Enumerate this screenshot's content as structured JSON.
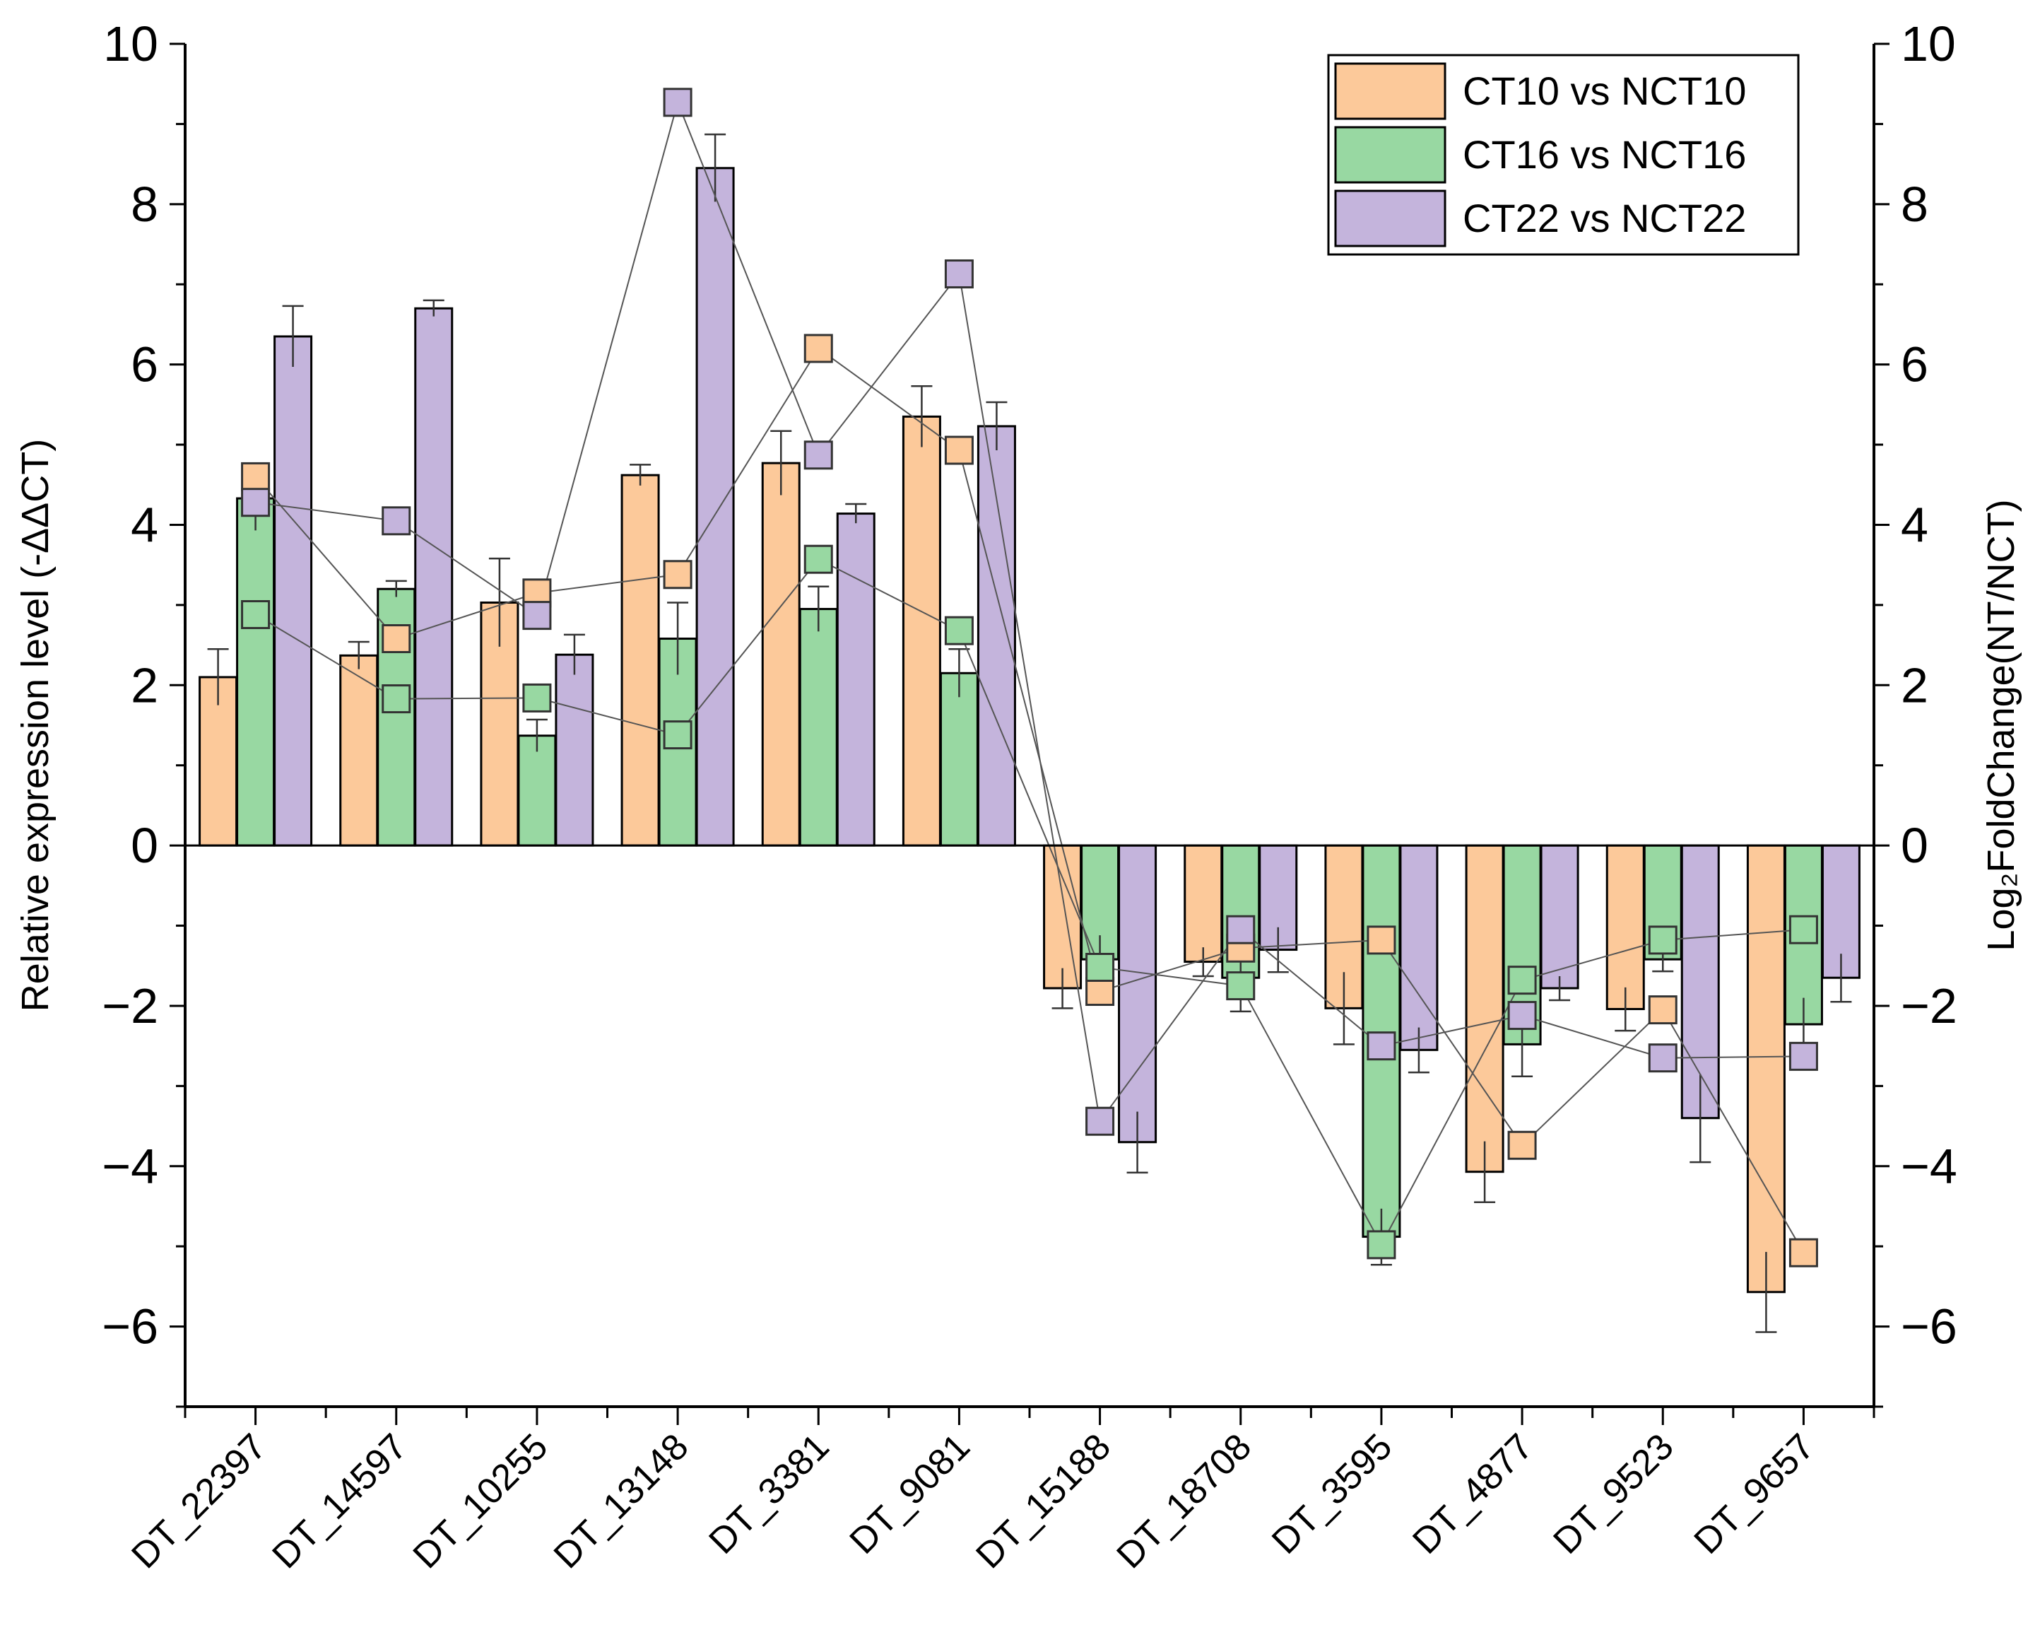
{
  "chart_data": {
    "type": "bar",
    "title": "",
    "xlabel": "",
    "ylabel": "Relative expression level (-ΔΔCT)",
    "ylabel_right": "Log₂FoldChange(NT/NCT)",
    "ylim": [
      -7,
      10
    ],
    "ylim_right": [
      -7,
      10
    ],
    "yticks": [
      -6,
      -4,
      -2,
      0,
      2,
      4,
      6,
      8,
      10
    ],
    "ytick_labels": [
      "−6",
      "−4",
      "−2",
      "0",
      "2",
      "4",
      "6",
      "8",
      "10"
    ],
    "grid": false,
    "legend_position": "top-right",
    "categories": [
      "DT_22397",
      "DT_14597",
      "DT_10255",
      "DT_13148",
      "DT_3381",
      "DT_9081",
      "DT_15188",
      "DT_18708",
      "DT_3595",
      "DT_4877",
      "DT_9523",
      "DT_9657"
    ],
    "series": [
      {
        "name": "CT10 vs NCT10",
        "color": "#FCC99A",
        "values": [
          2.1,
          2.37,
          3.03,
          4.62,
          4.77,
          5.35,
          -1.78,
          -1.45,
          -2.03,
          -4.07,
          -2.04,
          -5.57
        ],
        "errors": [
          0.35,
          0.17,
          0.55,
          0.13,
          0.4,
          0.38,
          0.25,
          0.18,
          0.45,
          0.38,
          0.27,
          0.5
        ],
        "log2fc": [
          4.6,
          2.58,
          3.15,
          3.38,
          6.2,
          4.93,
          -1.82,
          -1.28,
          -1.18,
          -3.74,
          -2.05,
          -5.08
        ]
      },
      {
        "name": "CT16 vs NCT16",
        "color": "#98D8A2",
        "values": [
          4.33,
          3.2,
          1.37,
          2.58,
          2.95,
          2.15,
          -1.42,
          -1.65,
          -4.88,
          -2.48,
          -1.42,
          -2.23
        ],
        "errors": [
          0.4,
          0.1,
          0.2,
          0.45,
          0.28,
          0.3,
          0.3,
          0.42,
          0.35,
          0.4,
          0.15,
          0.33
        ],
        "log2fc": [
          2.88,
          1.83,
          1.84,
          1.38,
          3.57,
          2.68,
          -1.52,
          -1.75,
          -4.98,
          -1.68,
          -1.18,
          -1.05
        ]
      },
      {
        "name": "CT22 vs NCT22",
        "color": "#C4B4DC",
        "values": [
          6.35,
          6.7,
          2.38,
          8.45,
          4.14,
          5.23,
          -3.7,
          -1.3,
          -2.55,
          -1.78,
          -3.4,
          -1.65
        ],
        "errors": [
          0.38,
          0.1,
          0.25,
          0.42,
          0.12,
          0.3,
          0.38,
          0.28,
          0.28,
          0.15,
          0.55,
          0.3
        ],
        "log2fc": [
          4.28,
          4.05,
          2.87,
          9.27,
          4.87,
          7.13,
          -3.44,
          -1.05,
          -2.5,
          -2.12,
          -2.65,
          -2.63
        ]
      }
    ]
  }
}
